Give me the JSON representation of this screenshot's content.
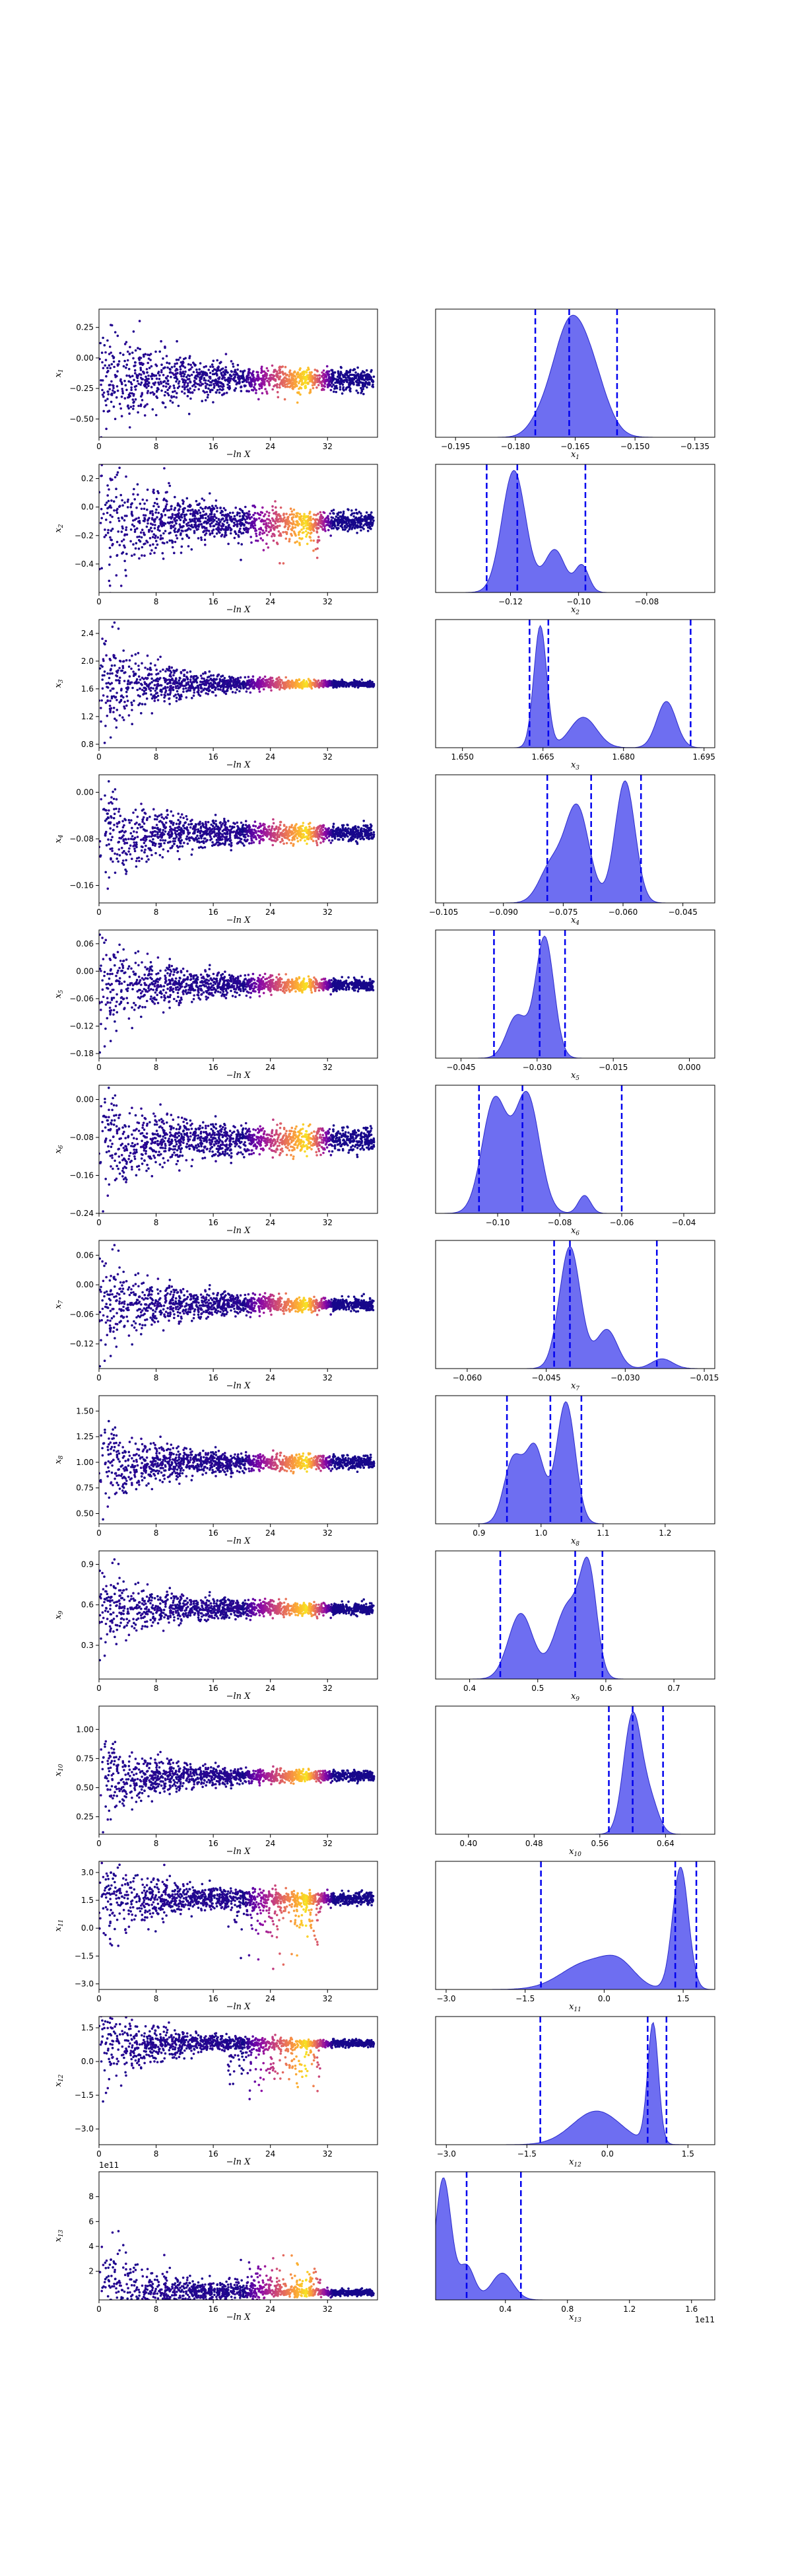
{
  "chart_data": [
    {
      "type": "scatter",
      "xlabel": "−ln X",
      "ylabel": "x1",
      "xlim": [
        0,
        39
      ],
      "ylim": [
        -0.65,
        0.4
      ],
      "xticks": [
        "0",
        "8",
        "16",
        "24",
        "32"
      ],
      "yticks": [
        "0.25",
        "0.00",
        "−0.25",
        "−0.50"
      ],
      "scatter": {
        "center": -0.18,
        "spread0": 0.25,
        "final": 0.04,
        "skew": 0
      },
      "colormap": "plasma"
    },
    {
      "type": "area",
      "xlabel": "x1",
      "xlim": [
        -0.2,
        -0.13
      ],
      "ylim": [
        0,
        1.05
      ],
      "xticks": [
        "−0.195",
        "−0.180",
        "−0.165",
        "−0.150",
        "−0.135"
      ],
      "quantiles": [
        -0.175,
        -0.1665,
        -0.1545
      ],
      "components": [
        [
          -0.167,
          0.004,
          1.0
        ],
        [
          -0.161,
          0.004,
          0.6
        ],
        [
          -0.174,
          0.003,
          0.12
        ]
      ]
    },
    {
      "type": "scatter",
      "xlabel": "−ln X",
      "ylabel": "x2",
      "xlim": [
        0,
        39
      ],
      "ylim": [
        -0.6,
        0.3
      ],
      "xticks": [
        "0",
        "8",
        "16",
        "24",
        "32"
      ],
      "yticks": [
        "0.2",
        "0.0",
        "−0.2",
        "−0.4"
      ],
      "scatter": {
        "center": -0.1,
        "spread0": 0.25,
        "final": 0.03,
        "skew": -0.1
      },
      "colormap": "plasma"
    },
    {
      "type": "area",
      "xlabel": "x2",
      "xlim": [
        -0.142,
        -0.06
      ],
      "ylim": [
        0,
        1.05
      ],
      "xticks": [
        "−0.12",
        "−0.10",
        "−0.08"
      ],
      "quantiles": [
        -0.127,
        -0.118,
        -0.098
      ],
      "components": [
        [
          -0.119,
          0.0035,
          1.0
        ],
        [
          -0.107,
          0.003,
          0.35
        ],
        [
          -0.099,
          0.002,
          0.22
        ]
      ]
    },
    {
      "type": "scatter",
      "xlabel": "−ln X",
      "ylabel": "x3",
      "xlim": [
        0,
        39
      ],
      "ylim": [
        0.75,
        2.6
      ],
      "xticks": [
        "0",
        "8",
        "16",
        "24",
        "32"
      ],
      "yticks": [
        "2.4",
        "2.0",
        "1.6",
        "1.2",
        "0.8"
      ],
      "scatter": {
        "center": 1.67,
        "spread0": 0.4,
        "final": 0.02,
        "skew": 0
      },
      "colormap": "plasma"
    },
    {
      "type": "area",
      "xlabel": "x3",
      "xlim": [
        1.645,
        1.697
      ],
      "ylim": [
        0,
        1.05
      ],
      "xticks": [
        "1.650",
        "1.665",
        "1.680",
        "1.695"
      ],
      "quantiles": [
        1.6625,
        1.666,
        1.6925
      ],
      "components": [
        [
          1.6645,
          0.0012,
          1.0
        ],
        [
          1.6725,
          0.0025,
          0.25
        ],
        [
          1.688,
          0.0018,
          0.38
        ]
      ]
    },
    {
      "type": "scatter",
      "xlabel": "−ln X",
      "ylabel": "x4",
      "xlim": [
        0,
        39
      ],
      "ylim": [
        -0.19,
        0.03
      ],
      "xticks": [
        "0",
        "8",
        "16",
        "24",
        "32"
      ],
      "yticks": [
        "0.00",
        "−0.08",
        "−0.16"
      ],
      "scatter": {
        "center": -0.07,
        "spread0": 0.045,
        "final": 0.006,
        "skew": 0
      },
      "colormap": "plasma"
    },
    {
      "type": "area",
      "xlabel": "x4",
      "xlim": [
        -0.107,
        -0.037
      ],
      "ylim": [
        0,
        1.05
      ],
      "xticks": [
        "−0.105",
        "−0.090",
        "−0.075",
        "−0.060",
        "−0.045"
      ],
      "quantiles": [
        -0.079,
        -0.068,
        -0.0555
      ],
      "components": [
        [
          -0.0715,
          0.003,
          0.78
        ],
        [
          -0.0595,
          0.0025,
          1.0
        ],
        [
          -0.078,
          0.003,
          0.3
        ]
      ]
    },
    {
      "type": "scatter",
      "xlabel": "−ln X",
      "ylabel": "x5",
      "xlim": [
        0,
        39
      ],
      "ylim": [
        -0.19,
        0.09
      ],
      "xticks": [
        "0",
        "8",
        "16",
        "24",
        "32"
      ],
      "yticks": [
        "0.06",
        "0.00",
        "−0.06",
        "−0.12",
        "−0.18"
      ],
      "scatter": {
        "center": -0.03,
        "spread0": 0.06,
        "final": 0.006,
        "skew": 0
      },
      "colormap": "plasma"
    },
    {
      "type": "area",
      "xlabel": "x5",
      "xlim": [
        -0.05,
        0.005
      ],
      "ylim": [
        0,
        1.05
      ],
      "xticks": [
        "−0.045",
        "−0.030",
        "−0.015",
        "0.000"
      ],
      "quantiles": [
        -0.0385,
        -0.0295,
        -0.0245
      ],
      "components": [
        [
          -0.0285,
          0.0018,
          1.0
        ],
        [
          -0.034,
          0.002,
          0.35
        ]
      ]
    },
    {
      "type": "scatter",
      "xlabel": "−ln X",
      "ylabel": "x6",
      "xlim": [
        0,
        39
      ],
      "ylim": [
        -0.24,
        0.03
      ],
      "xticks": [
        "0",
        "8",
        "16",
        "24",
        "32"
      ],
      "yticks": [
        "0.00",
        "−0.08",
        "−0.16",
        "−0.24"
      ],
      "scatter": {
        "center": -0.085,
        "spread0": 0.05,
        "final": 0.012,
        "skew": 0
      },
      "colormap": "plasma"
    },
    {
      "type": "area",
      "xlabel": "x6",
      "xlim": [
        -0.12,
        -0.03
      ],
      "ylim": [
        0,
        1.05
      ],
      "xticks": [
        "−0.10",
        "−0.08",
        "−0.06",
        "−0.04"
      ],
      "quantiles": [
        -0.106,
        -0.092,
        -0.06
      ],
      "components": [
        [
          -0.101,
          0.004,
          0.88
        ],
        [
          -0.0905,
          0.004,
          0.92
        ],
        [
          -0.072,
          0.002,
          0.14
        ]
      ]
    },
    {
      "type": "scatter",
      "xlabel": "−ln X",
      "ylabel": "x7",
      "xlim": [
        0,
        39
      ],
      "ylim": [
        -0.17,
        0.09
      ],
      "xticks": [
        "0",
        "8",
        "16",
        "24",
        "32"
      ],
      "yticks": [
        "0.06",
        "0.00",
        "−0.06",
        "−0.12"
      ],
      "scatter": {
        "center": -0.04,
        "spread0": 0.05,
        "final": 0.006,
        "skew": 0
      },
      "colormap": "plasma"
    },
    {
      "type": "area",
      "xlabel": "x7",
      "xlim": [
        -0.066,
        -0.013
      ],
      "ylim": [
        0,
        1.05
      ],
      "xticks": [
        "−0.060",
        "−0.045",
        "−0.030",
        "−0.015"
      ],
      "quantiles": [
        -0.0435,
        -0.0405,
        -0.024
      ],
      "components": [
        [
          -0.0405,
          0.002,
          1.0
        ],
        [
          -0.0335,
          0.002,
          0.32
        ],
        [
          -0.023,
          0.002,
          0.08
        ]
      ]
    },
    {
      "type": "scatter",
      "xlabel": "−ln X",
      "ylabel": "x8",
      "xlim": [
        0,
        39
      ],
      "ylim": [
        0.4,
        1.65
      ],
      "xticks": [
        "0",
        "8",
        "16",
        "24",
        "32"
      ],
      "yticks": [
        "1.50",
        "1.25",
        "1.00",
        "0.75",
        "0.50"
      ],
      "scatter": {
        "center": 1.0,
        "spread0": 0.2,
        "final": 0.03,
        "skew": 0
      },
      "colormap": "plasma"
    },
    {
      "type": "area",
      "xlabel": "x8",
      "xlim": [
        0.83,
        1.28
      ],
      "ylim": [
        0,
        1.05
      ],
      "xticks": [
        "0.9",
        "1.0",
        "1.1",
        "1.2"
      ],
      "quantiles": [
        0.945,
        1.015,
        1.065
      ],
      "components": [
        [
          0.955,
          0.015,
          0.52
        ],
        [
          0.99,
          0.015,
          0.62
        ],
        [
          1.04,
          0.015,
          1.0
        ]
      ]
    },
    {
      "type": "scatter",
      "xlabel": "−ln X",
      "ylabel": "x9",
      "xlim": [
        0,
        39
      ],
      "ylim": [
        0.05,
        1.0
      ],
      "xticks": [
        "0",
        "8",
        "16",
        "24",
        "32"
      ],
      "yticks": [
        "0.9",
        "0.6",
        "0.3"
      ],
      "scatter": {
        "center": 0.57,
        "spread0": 0.15,
        "final": 0.02,
        "skew": 0
      },
      "colormap": "plasma"
    },
    {
      "type": "area",
      "xlabel": "x9",
      "xlim": [
        0.35,
        0.76
      ],
      "ylim": [
        0,
        1.05
      ],
      "xticks": [
        "0.4",
        "0.5",
        "0.6",
        "0.7"
      ],
      "quantiles": [
        0.445,
        0.555,
        0.595
      ],
      "components": [
        [
          0.475,
          0.018,
          0.55
        ],
        [
          0.545,
          0.02,
          0.62
        ],
        [
          0.575,
          0.012,
          0.8
        ]
      ]
    },
    {
      "type": "scatter",
      "xlabel": "−ln X",
      "ylabel": "x10",
      "xlim": [
        0,
        39
      ],
      "ylim": [
        0.1,
        1.2
      ],
      "xticks": [
        "0",
        "8",
        "16",
        "24",
        "32"
      ],
      "yticks": [
        "1.00",
        "0.75",
        "0.50",
        "0.25"
      ],
      "scatter": {
        "center": 0.6,
        "spread0": 0.18,
        "final": 0.02,
        "skew": 0
      },
      "colormap": "plasma"
    },
    {
      "type": "area",
      "xlabel": "x10",
      "xlim": [
        0.36,
        0.7
      ],
      "ylim": [
        0,
        1.05
      ],
      "xticks": [
        "0.40",
        "0.48",
        "0.56",
        "0.64"
      ],
      "quantiles": [
        0.571,
        0.6,
        0.637
      ],
      "components": [
        [
          0.6,
          0.011,
          1.0
        ],
        [
          0.622,
          0.01,
          0.25
        ]
      ]
    },
    {
      "type": "scatter",
      "xlabel": "−ln X",
      "ylabel": "x11",
      "xlim": [
        0,
        39
      ],
      "ylim": [
        -3.3,
        3.6
      ],
      "xticks": [
        "0",
        "8",
        "16",
        "24",
        "32"
      ],
      "yticks": [
        "3.0",
        "1.5",
        "0.0",
        "−1.5",
        "−3.0"
      ],
      "scatter": {
        "center": 1.6,
        "spread0": 1.2,
        "final": 0.15,
        "skew": -1.2
      },
      "colormap": "plasma"
    },
    {
      "type": "area",
      "xlabel": "x11",
      "xlim": [
        -3.2,
        2.1
      ],
      "ylim": [
        0,
        1.05
      ],
      "xticks": [
        "−3.0",
        "−1.5",
        "0.0",
        "1.5"
      ],
      "quantiles": [
        -1.2,
        1.35,
        1.75
      ],
      "components": [
        [
          1.45,
          0.15,
          1.0
        ],
        [
          -0.3,
          0.5,
          0.22
        ],
        [
          0.3,
          0.3,
          0.15
        ]
      ]
    },
    {
      "type": "scatter",
      "xlabel": "−ln X",
      "ylabel": "x12",
      "xlim": [
        0,
        39
      ],
      "ylim": [
        -3.7,
        2.0
      ],
      "xticks": [
        "0",
        "8",
        "16",
        "24",
        "32"
      ],
      "yticks": [
        "1.5",
        "0.0",
        "−1.5",
        "−3.0"
      ],
      "scatter": {
        "center": 0.8,
        "spread0": 1.0,
        "final": 0.07,
        "skew": -1.0
      },
      "colormap": "plasma"
    },
    {
      "type": "area",
      "xlabel": "x12",
      "xlim": [
        -3.2,
        2.0
      ],
      "ylim": [
        0,
        1.05
      ],
      "xticks": [
        "−3.0",
        "−1.5",
        "0.0",
        "1.5"
      ],
      "quantiles": [
        -1.25,
        0.75,
        1.1
      ],
      "components": [
        [
          0.85,
          0.1,
          1.0
        ],
        [
          -0.2,
          0.45,
          0.28
        ]
      ]
    },
    {
      "type": "scatter",
      "xlabel": "−ln X",
      "ylabel": "x13",
      "offset": "1e11",
      "xlim": [
        0,
        39
      ],
      "ylim": [
        -0.3,
        10
      ],
      "xticks": [
        "0",
        "8",
        "16",
        "24",
        "32"
      ],
      "yticks": [
        "8",
        "6",
        "4",
        "2"
      ],
      "scatter": {
        "center": 0.3,
        "spread0": 2.5,
        "final": 0.1,
        "skew": 1.0
      },
      "colormap": "plasma"
    },
    {
      "type": "area",
      "xlabel": "x13",
      "offset": "1e11",
      "xlim": [
        -0.05,
        1.75
      ],
      "ylim": [
        0,
        1.05
      ],
      "xticks": [
        "0.4",
        "0.8",
        "1.2",
        "1.6"
      ],
      "quantiles": [
        0.15,
        0.5
      ],
      "components": [
        [
          0.0,
          0.05,
          1.0
        ],
        [
          0.15,
          0.05,
          0.28
        ],
        [
          0.38,
          0.07,
          0.22
        ]
      ]
    }
  ]
}
